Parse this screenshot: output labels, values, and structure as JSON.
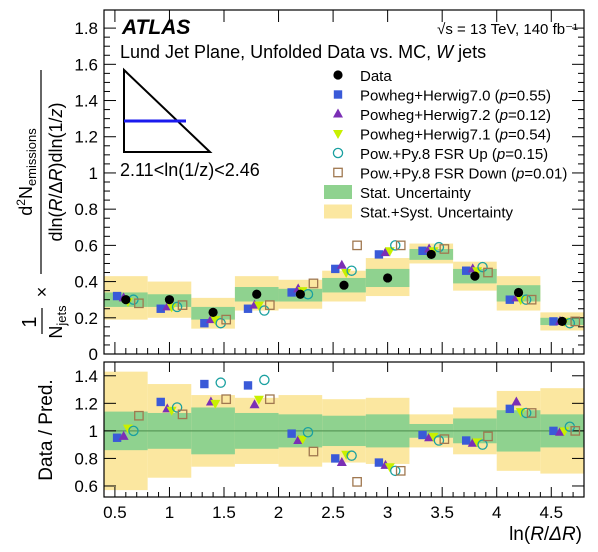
{
  "atlas_label": "ATLAS",
  "energy_label": "√s = 13 TeV, 140 fb⁻¹",
  "subtitle": "Lund Jet Plane, Unfolded Data vs. MC, W jets",
  "inset_label": "2.11<ln(1/z)<2.46",
  "colors": {
    "data": "#000000",
    "herwig70": "#3a5ad8",
    "herwig72": "#7b2fb5",
    "herwig71": "#c8f000",
    "fsr_up": "#1aa0a0",
    "fsr_down": "#a07850",
    "stat_band": "#8fd28f",
    "syst_band": "#fbe7a0",
    "inset_line": "#1a1aee"
  },
  "chart_data": [
    {
      "type": "scatter",
      "ylabel": "1/N_jets × d²N_emissions / dln(R/ΔR)dln(1/z)",
      "xlabel": "",
      "ylim": [
        0,
        1.9
      ],
      "xlim": [
        0.4,
        4.8
      ],
      "yticks": [
        "0",
        "0.2",
        "0.4",
        "0.6",
        "0.8",
        "1",
        "1.2",
        "1.4",
        "1.6",
        "1.8"
      ],
      "legend_position": "top-right",
      "bins": [
        [
          0.4,
          0.8
        ],
        [
          0.8,
          1.2
        ],
        [
          1.2,
          1.6
        ],
        [
          1.6,
          2.0
        ],
        [
          2.0,
          2.4
        ],
        [
          2.4,
          2.8
        ],
        [
          2.8,
          3.2
        ],
        [
          3.2,
          3.6
        ],
        [
          3.6,
          4.0
        ],
        [
          4.0,
          4.4
        ],
        [
          4.4,
          4.8
        ]
      ],
      "series": [
        {
          "key": "data",
          "name": "Data",
          "marker": "circle-filled",
          "x": [
            0.6,
            1.0,
            1.4,
            1.8,
            2.2,
            2.6,
            3.0,
            3.4,
            3.8,
            4.2,
            4.6
          ],
          "values": [
            0.3,
            0.3,
            0.23,
            0.33,
            0.33,
            0.38,
            0.42,
            0.55,
            0.43,
            0.34,
            0.18
          ]
        },
        {
          "key": "herwig70",
          "name": "Powheg+Herwig7.0 (p=0.55)",
          "marker": "square",
          "x": [
            0.52,
            0.92,
            1.32,
            1.72,
            2.12,
            2.52,
            2.92,
            3.32,
            3.72,
            4.12,
            4.52
          ],
          "values": [
            0.32,
            0.25,
            0.17,
            0.25,
            0.34,
            0.47,
            0.55,
            0.57,
            0.46,
            0.3,
            0.18
          ]
        },
        {
          "key": "herwig72",
          "name": "Powheg+Herwig7.2 (p=0.12)",
          "marker": "triangle-up",
          "x": [
            0.58,
            0.98,
            1.38,
            1.78,
            2.18,
            2.58,
            2.98,
            3.38,
            3.78,
            4.18,
            4.58
          ],
          "values": [
            0.31,
            0.26,
            0.19,
            0.27,
            0.36,
            0.49,
            0.56,
            0.58,
            0.47,
            0.31,
            0.18
          ]
        },
        {
          "key": "herwig71",
          "name": "Powheg+Herwig7.1 (p=0.54)",
          "marker": "triangle-down",
          "x": [
            0.62,
            1.02,
            1.42,
            1.82,
            2.22,
            2.62,
            3.02,
            3.42,
            3.82,
            4.22,
            4.62
          ],
          "values": [
            0.29,
            0.26,
            0.19,
            0.27,
            0.35,
            0.45,
            0.57,
            0.57,
            0.46,
            0.3,
            0.18
          ]
        },
        {
          "key": "fsr_up",
          "name": "Pow.+Py.8 FSR Up (p=0.15)",
          "marker": "circle-open",
          "x": [
            0.67,
            1.07,
            1.47,
            1.87,
            2.27,
            2.67,
            3.07,
            3.47,
            3.87,
            4.27,
            4.67
          ],
          "values": [
            0.3,
            0.26,
            0.17,
            0.24,
            0.33,
            0.46,
            0.6,
            0.59,
            0.48,
            0.3,
            0.17
          ]
        },
        {
          "key": "fsr_down",
          "name": "Pow.+Py.8 FSR Down (p=0.01)",
          "marker": "square-open",
          "x": [
            0.72,
            1.12,
            1.52,
            1.92,
            2.32,
            2.72,
            3.12,
            3.52,
            3.92,
            4.32,
            4.72
          ],
          "values": [
            0.28,
            0.27,
            0.19,
            0.27,
            0.39,
            0.6,
            0.6,
            0.58,
            0.45,
            0.3,
            0.18
          ]
        }
      ],
      "bands": [
        {
          "key": "syst_band",
          "name": "Stat.+Syst. Uncertainty",
          "low": [
            0.19,
            0.2,
            0.14,
            0.24,
            0.25,
            0.29,
            0.32,
            0.5,
            0.35,
            0.24,
            0.13
          ],
          "high": [
            0.43,
            0.4,
            0.31,
            0.43,
            0.41,
            0.46,
            0.53,
            0.61,
            0.51,
            0.43,
            0.23
          ]
        },
        {
          "key": "stat_band",
          "name": "Stat. Uncertainty",
          "low": [
            0.26,
            0.26,
            0.19,
            0.29,
            0.29,
            0.34,
            0.37,
            0.52,
            0.39,
            0.29,
            0.16
          ],
          "high": [
            0.34,
            0.33,
            0.26,
            0.37,
            0.36,
            0.42,
            0.47,
            0.58,
            0.47,
            0.38,
            0.2
          ]
        }
      ]
    },
    {
      "type": "scatter",
      "ylabel": "Data / Pred.",
      "xlabel": "ln(R/ΔR)",
      "ylim": [
        0.52,
        1.5
      ],
      "xlim": [
        0.4,
        4.8
      ],
      "xticks": [
        "0.5",
        "1",
        "1.5",
        "2",
        "2.5",
        "3",
        "3.5",
        "4",
        "4.5"
      ],
      "yticks": [
        "0.6",
        "0.8",
        "1",
        "1.2",
        "1.4"
      ],
      "reference_line": 1.0,
      "series": [
        {
          "key": "herwig70",
          "marker": "square",
          "x": [
            0.52,
            0.92,
            1.32,
            1.72,
            2.12,
            2.52,
            2.92,
            3.32,
            3.72,
            4.12,
            4.52
          ],
          "values": [
            0.95,
            1.21,
            1.34,
            1.33,
            0.98,
            0.8,
            0.77,
            0.97,
            0.93,
            1.16,
            1.0
          ]
        },
        {
          "key": "herwig72",
          "marker": "triangle-up",
          "x": [
            0.58,
            0.98,
            1.38,
            1.78,
            2.18,
            2.58,
            2.98,
            3.38,
            3.78,
            4.18,
            4.58
          ],
          "values": [
            0.96,
            1.16,
            1.21,
            1.19,
            0.93,
            0.77,
            0.75,
            0.95,
            0.91,
            1.21,
            0.99
          ]
        },
        {
          "key": "herwig71",
          "marker": "triangle-down",
          "x": [
            0.62,
            1.02,
            1.42,
            1.82,
            2.22,
            2.62,
            3.02,
            3.42,
            3.82,
            4.22,
            4.62
          ],
          "values": [
            1.02,
            1.15,
            1.2,
            1.23,
            0.94,
            0.83,
            0.74,
            0.96,
            0.92,
            1.14,
            1.0
          ]
        },
        {
          "key": "fsr_up",
          "marker": "circle-open",
          "x": [
            0.67,
            1.07,
            1.47,
            1.87,
            2.27,
            2.67,
            3.07,
            3.47,
            3.87,
            4.27,
            4.67
          ],
          "values": [
            1.0,
            1.17,
            1.35,
            1.37,
            0.99,
            0.82,
            0.71,
            0.93,
            0.9,
            1.13,
            1.03
          ]
        },
        {
          "key": "fsr_down",
          "marker": "square-open",
          "x": [
            0.72,
            1.12,
            1.52,
            1.92,
            2.32,
            2.72,
            3.12,
            3.52,
            3.92,
            4.32,
            4.72
          ],
          "values": [
            1.11,
            1.12,
            1.23,
            1.23,
            0.85,
            0.63,
            0.71,
            0.94,
            0.96,
            1.13,
            1.0
          ]
        }
      ],
      "bands": [
        {
          "key": "syst_band",
          "low": [
            0.57,
            0.66,
            0.74,
            0.76,
            0.74,
            0.77,
            0.76,
            0.88,
            0.83,
            0.71,
            0.69
          ],
          "high": [
            1.43,
            1.34,
            1.26,
            1.24,
            1.26,
            1.23,
            1.24,
            1.12,
            1.17,
            1.29,
            1.31
          ]
        },
        {
          "key": "stat_band",
          "low": [
            0.86,
            0.87,
            0.83,
            0.87,
            0.88,
            0.89,
            0.88,
            0.95,
            0.91,
            0.85,
            0.88
          ],
          "high": [
            1.14,
            1.13,
            1.17,
            1.13,
            1.12,
            1.11,
            1.12,
            1.05,
            1.09,
            1.15,
            1.12
          ]
        }
      ]
    }
  ]
}
